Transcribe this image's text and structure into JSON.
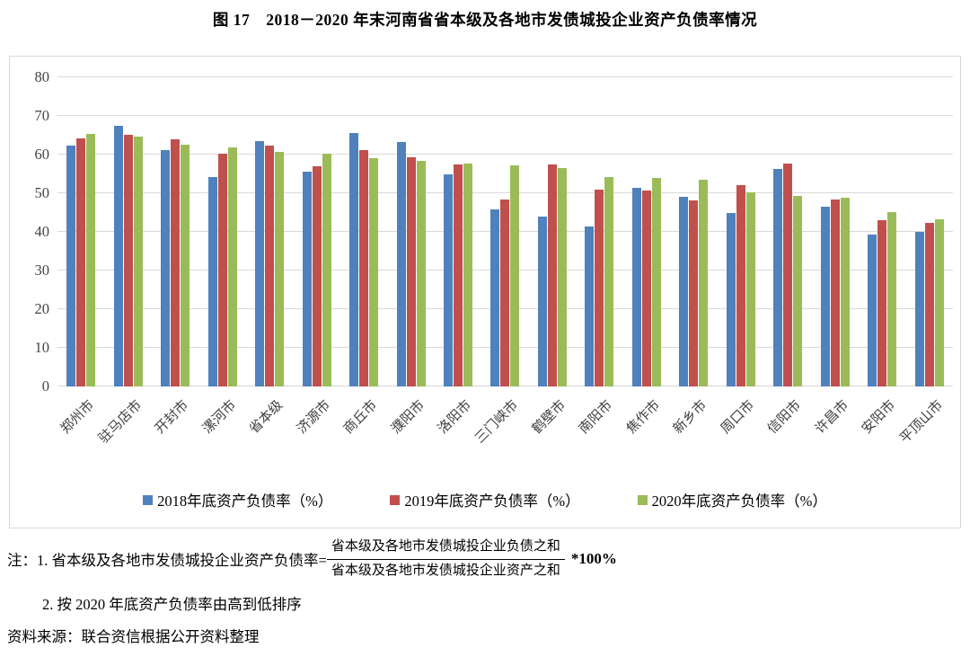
{
  "title": "图 17　2018－2020 年末河南省省本级及各地市发债城投企业资产负债率情况",
  "chart_data": {
    "type": "bar",
    "categories": [
      "郑州市",
      "驻马店市",
      "开封市",
      "漯河市",
      "省本级",
      "济源市",
      "商丘市",
      "濮阳市",
      "洛阳市",
      "三门峡市",
      "鹤壁市",
      "南阳市",
      "焦作市",
      "新乡市",
      "周口市",
      "信阳市",
      "许昌市",
      "安阳市",
      "平顶山市"
    ],
    "series": [
      {
        "name": "2018年底资产负债率（%）",
        "color": "#4F81BD",
        "values": [
          62.3,
          67.4,
          61.2,
          54.1,
          63.6,
          55.5,
          65.7,
          63.3,
          54.8,
          45.8,
          43.9,
          41.5,
          51.3,
          49.0,
          45.0,
          56.2,
          46.4,
          39.4,
          39.9
        ]
      },
      {
        "name": "2019年底资产负债率（%）",
        "color": "#C0504D",
        "values": [
          64.1,
          65.1,
          63.9,
          60.3,
          62.4,
          56.9,
          61.2,
          59.2,
          57.5,
          48.3,
          57.5,
          51.0,
          50.7,
          48.2,
          52.2,
          57.6,
          48.3,
          43.0,
          42.4
        ]
      },
      {
        "name": "2020年底资产负债率（%）",
        "color": "#9BBB59",
        "values": [
          65.4,
          64.6,
          62.6,
          61.9,
          60.8,
          60.2,
          59.0,
          58.4,
          57.6,
          57.3,
          56.4,
          54.3,
          54.0,
          53.4,
          50.3,
          49.2,
          48.8,
          45.1,
          43.2
        ]
      }
    ],
    "ylim": [
      0,
      80
    ],
    "yticks": [
      0,
      10,
      20,
      30,
      40,
      50,
      60,
      70,
      80
    ],
    "grid": true,
    "legend_position": "bottom",
    "colors": {
      "grid": "#d9d9d9",
      "axis_text": "#3f3f3f"
    }
  },
  "notes": {
    "note1_prefix": "注：1. 省本级及各地市发债城投企业资产负债率=",
    "fraction_numerator": "省本级及各地市发债城投企业负债之和",
    "fraction_denominator": "省本级及各地市发债城投企业资产之和",
    "note1_suffix": "*100%",
    "note2": "2. 按 2020 年底资产负债率由高到低排序"
  },
  "source": "资料来源：联合资信根据公开资料整理"
}
